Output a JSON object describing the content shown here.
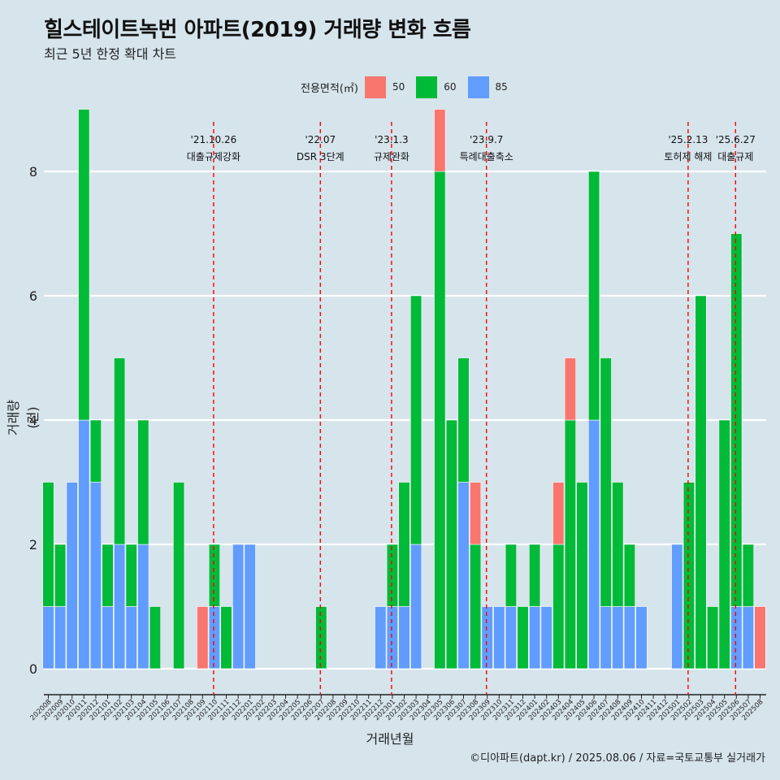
{
  "title": "힐스테이트녹번 아파트(2019) 거래량 변화 흐름",
  "subtitle": "최근 5년 한정 확대 차트",
  "caption": "©디아파트(dapt.kr) / 2025.08.06 / 자료=국토교통부 실거래가",
  "legend": {
    "title": "전용면적(㎡)",
    "items": [
      {
        "label": "50",
        "color": "#f8766d"
      },
      {
        "label": "60",
        "color": "#00ba38"
      },
      {
        "label": "85",
        "color": "#619cff"
      }
    ]
  },
  "chart_data": {
    "type": "bar",
    "title": "힐스테이트녹번 아파트(2019) 거래량 변화 흐름",
    "subtitle": "최근 5년 한정 확대 차트",
    "xlabel": "거래년월",
    "ylabel": "거래량(건)",
    "ylim": [
      -0.3,
      8.7
    ],
    "yticks": [
      0,
      2,
      4,
      6,
      8
    ],
    "grid": "horizontal",
    "legend_position": "top",
    "categories": [
      "202008",
      "202009",
      "202010",
      "202011",
      "202012",
      "202101",
      "202102",
      "202103",
      "202104",
      "202105",
      "202106",
      "202107",
      "202108",
      "202109",
      "202110",
      "202111",
      "202112",
      "202201",
      "202202",
      "202203",
      "202204",
      "202205",
      "202206",
      "202207",
      "202208",
      "202209",
      "202210",
      "202211",
      "202212",
      "202301",
      "202302",
      "202303",
      "202304",
      "202305",
      "202306",
      "202307",
      "202308",
      "202309",
      "202310",
      "202311",
      "202312",
      "202401",
      "202402",
      "202403",
      "202404",
      "202405",
      "202406",
      "202407",
      "202408",
      "202409",
      "202410",
      "202411",
      "202412",
      "202501",
      "202502",
      "202503",
      "202504",
      "202505",
      "202506",
      "202507",
      "202508"
    ],
    "series": [
      {
        "name": "50",
        "color": "#f8766d",
        "values": [
          0,
          0,
          0,
          0,
          0,
          0,
          0,
          0,
          0,
          0,
          0,
          0,
          0,
          1,
          0,
          0,
          0,
          0,
          0,
          0,
          0,
          0,
          0,
          0,
          0,
          0,
          0,
          0,
          0,
          0,
          0,
          0,
          0,
          1,
          0,
          0,
          1,
          0,
          0,
          0,
          0,
          0,
          0,
          1,
          1,
          0,
          0,
          0,
          0,
          0,
          0,
          0,
          0,
          0,
          0,
          0,
          0,
          0,
          0,
          0,
          1
        ]
      },
      {
        "name": "60",
        "color": "#00ba38",
        "values": [
          2,
          1,
          0,
          5,
          1,
          1,
          3,
          1,
          2,
          1,
          0,
          3,
          0,
          0,
          1,
          1,
          0,
          0,
          0,
          0,
          0,
          0,
          0,
          1,
          0,
          0,
          0,
          0,
          0,
          1,
          2,
          4,
          0,
          8,
          4,
          2,
          2,
          0,
          0,
          1,
          1,
          1,
          0,
          2,
          4,
          3,
          4,
          4,
          2,
          1,
          0,
          0,
          0,
          0,
          3,
          6,
          1,
          4,
          6,
          1,
          0
        ]
      },
      {
        "name": "85",
        "color": "#619cff",
        "values": [
          1,
          1,
          3,
          4,
          3,
          1,
          2,
          1,
          2,
          0,
          0,
          0,
          0,
          0,
          1,
          0,
          2,
          2,
          0,
          0,
          0,
          0,
          0,
          0,
          0,
          0,
          0,
          0,
          1,
          1,
          1,
          2,
          0,
          0,
          0,
          3,
          0,
          1,
          1,
          1,
          0,
          1,
          1,
          0,
          0,
          0,
          4,
          1,
          1,
          1,
          1,
          0,
          0,
          2,
          0,
          0,
          0,
          0,
          1,
          1,
          0
        ]
      }
    ],
    "events": [
      {
        "date_line1": "'21.10.26",
        "date_line2": "대출규제강화",
        "at": "202110"
      },
      {
        "date_line1": "'22.07",
        "date_line2": "DSR 3단계",
        "at": "202207"
      },
      {
        "date_line1": "'23.1.3",
        "date_line2": "규제완화",
        "at": "202301"
      },
      {
        "date_line1": "'23.9.7",
        "date_line2": "특례대출축소",
        "at": "202309"
      },
      {
        "date_line1": "'25.2.13",
        "date_line2": "토허제 해제",
        "at": "202502"
      },
      {
        "date_line1": "'25.6.27",
        "date_line2": "대출규제",
        "at": "202506"
      }
    ]
  }
}
